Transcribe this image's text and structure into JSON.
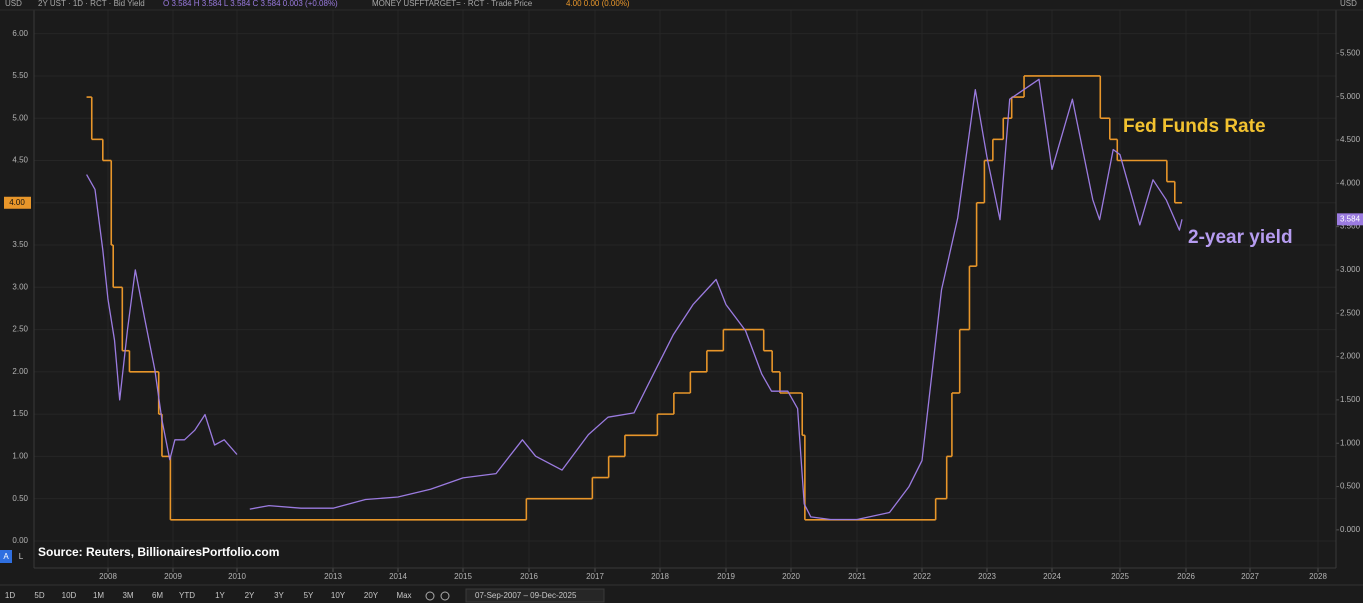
{
  "header": {
    "left_legend": "2Y UST · 1D · RCT · Bid Yield",
    "left_ohlc": "O 3.584  H 3.584  L 3.584  C 3.584  0.003 (+0.08%)",
    "right_legend": "MONEY USFFTARGET= · RCT · Trade Price",
    "right_values": "4.00  0.00 (0.00%)"
  },
  "toolbar": {
    "ranges": [
      "1D",
      "5D",
      "10D",
      "1M",
      "3M",
      "6M",
      "YTD",
      "1Y",
      "2Y",
      "3Y",
      "5Y",
      "10Y",
      "20Y",
      "Max"
    ],
    "date_range": "07-Sep-2007 – 09-Dec-2025",
    "scale_buttons": [
      "A",
      "L"
    ]
  },
  "chart_data": {
    "type": "line",
    "source": "Source: Reuters, BillionairesPortfolio.com",
    "y_axis_label": "USD",
    "y2_axis_label": "USD",
    "grid": true,
    "xticks": [
      2008,
      2009,
      2010,
      2013,
      2014,
      2015,
      2016,
      2017,
      2018,
      2019,
      2020,
      2021,
      2022,
      2023,
      2024,
      2025,
      2026,
      2027,
      2028
    ],
    "ylim": [
      -0.32,
      6.28
    ],
    "yticks": [
      {
        "value": 0,
        "label": "0.00"
      },
      {
        "value": 0.5,
        "label": "0.50"
      },
      {
        "value": 1,
        "label": "1.00"
      },
      {
        "value": 1.5,
        "label": "1.50"
      },
      {
        "value": 2,
        "label": "2.00"
      },
      {
        "value": 2.5,
        "label": "2.50"
      },
      {
        "value": 3,
        "label": "3.00"
      },
      {
        "value": 3.5,
        "label": "3.50"
      },
      {
        "value": 4,
        "label": "4.00"
      },
      {
        "value": 4.5,
        "label": "4.50"
      },
      {
        "value": 5,
        "label": "5.00"
      },
      {
        "value": 5.5,
        "label": "5.50"
      },
      {
        "value": 6,
        "label": "6.00"
      }
    ],
    "y2lim": [
      -0.44,
      6.0
    ],
    "y2ticks": [
      {
        "value": 0,
        "label": "0.000"
      },
      {
        "value": 0.5,
        "label": "0.500"
      },
      {
        "value": 1,
        "label": "1.000"
      },
      {
        "value": 1.5,
        "label": "1.500"
      },
      {
        "value": 2,
        "label": "2.000"
      },
      {
        "value": 2.5,
        "label": "2.500"
      },
      {
        "value": 3,
        "label": "3.000"
      },
      {
        "value": 3.5,
        "label": "3.500"
      },
      {
        "value": 4,
        "label": "4.000"
      },
      {
        "value": 4.5,
        "label": "4.500"
      },
      {
        "value": 5,
        "label": "5.000"
      },
      {
        "value": 5.5,
        "label": "5.500"
      }
    ],
    "series": [
      {
        "name": "Fed Funds Rate",
        "color": "#e8962a",
        "label_color": "#f2c230",
        "interpolation": "step-after",
        "axis": "y",
        "price_tag": "4.00",
        "x": [
          2007.67,
          2007.75,
          2007.92,
          2008.05,
          2008.08,
          2008.22,
          2008.33,
          2008.78,
          2008.83,
          2008.96,
          2015.96,
          2016.96,
          2017.21,
          2017.46,
          2017.96,
          2018.21,
          2018.46,
          2018.71,
          2018.96,
          2019.58,
          2019.71,
          2019.83,
          2020.17,
          2020.21,
          2022.21,
          2022.38,
          2022.46,
          2022.58,
          2022.73,
          2022.84,
          2022.96,
          2023.09,
          2023.25,
          2023.38,
          2023.57,
          2024.71,
          2024.85,
          2024.96,
          2025.71,
          2025.83,
          2025.94
        ],
        "values": [
          5.25,
          4.75,
          4.5,
          3.5,
          3.0,
          2.25,
          2.0,
          1.5,
          1.0,
          0.25,
          0.5,
          0.75,
          1.0,
          1.25,
          1.5,
          1.75,
          2.0,
          2.25,
          2.5,
          2.25,
          2.0,
          1.75,
          1.25,
          0.25,
          0.5,
          1.0,
          1.75,
          2.5,
          3.25,
          4.0,
          4.5,
          4.75,
          5.0,
          5.25,
          5.5,
          5.0,
          4.75,
          4.5,
          4.25,
          4.0,
          4.0
        ]
      },
      {
        "name": "2-year yield",
        "color": "#9b7be0",
        "label_color": "#b69cf0",
        "interpolation": "linear",
        "axis": "y2",
        "price_tag": "3.584",
        "x": [
          2007.67,
          2007.8,
          2007.92,
          2008.0,
          2008.1,
          2008.18,
          2008.3,
          2008.42,
          2008.57,
          2008.72,
          2008.83,
          2008.95,
          2009.03,
          2009.18,
          2009.34,
          2009.5,
          2009.65,
          2009.8,
          2010.0,
          2010.15,
          2010.4,
          2011.0,
          2012.0,
          2013.0,
          2013.5,
          2014.0,
          2014.5,
          2015.0,
          2015.5,
          2015.9,
          2016.1,
          2016.5,
          2016.9,
          2017.2,
          2017.6,
          2017.9,
          2018.2,
          2018.5,
          2018.85,
          2019.0,
          2019.3,
          2019.55,
          2019.7,
          2019.95,
          2020.1,
          2020.2,
          2020.3,
          2020.6,
          2021.0,
          2021.5,
          2021.8,
          2022.0,
          2022.3,
          2022.55,
          2022.82,
          2023.0,
          2023.2,
          2023.35,
          2023.8,
          2024.0,
          2024.3,
          2024.6,
          2024.7,
          2024.9,
          2025.0,
          2025.3,
          2025.5,
          2025.7,
          2025.9,
          2025.94
        ],
        "values": [
          4.1,
          3.93,
          3.23,
          2.66,
          2.19,
          1.5,
          2.31,
          3.0,
          2.42,
          1.85,
          1.27,
          0.81,
          1.04,
          1.04,
          1.15,
          1.33,
          0.98,
          1.04,
          0.87,
          null,
          0.24,
          0.28,
          0.25,
          0.25,
          0.35,
          0.38,
          0.47,
          0.6,
          0.65,
          1.04,
          0.85,
          0.69,
          1.1,
          1.3,
          1.35,
          1.8,
          2.25,
          2.6,
          2.89,
          2.6,
          2.3,
          1.8,
          1.6,
          1.6,
          1.4,
          0.3,
          0.15,
          0.12,
          0.12,
          0.2,
          0.5,
          0.8,
          2.77,
          3.6,
          5.08,
          4.3,
          3.58,
          4.97,
          5.2,
          4.16,
          4.97,
          3.81,
          3.58,
          4.39,
          4.33,
          3.52,
          4.04,
          3.81,
          3.46,
          3.584
        ]
      }
    ]
  }
}
